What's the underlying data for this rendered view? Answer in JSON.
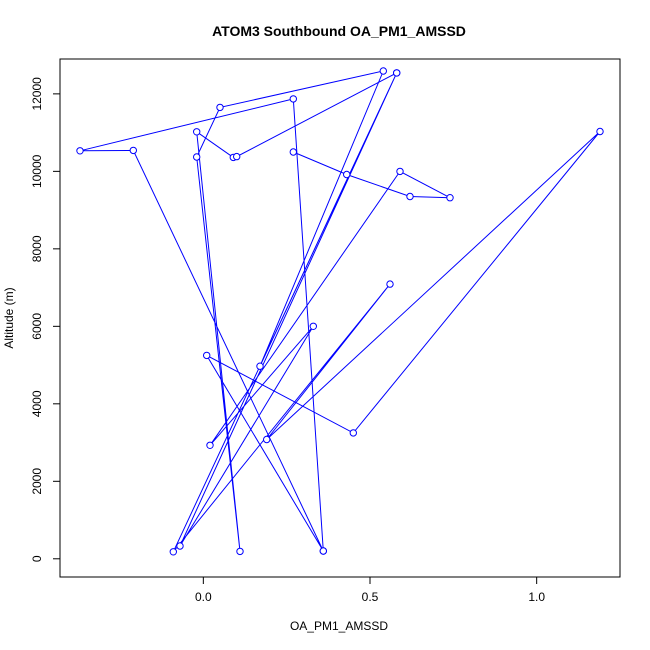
{
  "chart_data": {
    "type": "line",
    "title": "ATOM3 Southbound OA_PM1_AMSSD",
    "xlabel": "OA_PM1_AMSSD",
    "ylabel": "Altitude (m)",
    "xlim": [
      -0.43,
      1.25
    ],
    "ylim": [
      -470,
      12900
    ],
    "xticks": [
      0.0,
      0.5,
      1.0
    ],
    "xtick_labels": [
      "0.0",
      "0.5",
      "1.0"
    ],
    "yticks": [
      0,
      2000,
      4000,
      6000,
      8000,
      10000,
      12000
    ],
    "ytick_labels": [
      "0",
      "2000",
      "4000",
      "6000",
      "8000",
      "10000",
      "12000"
    ],
    "grid": false,
    "legend": "none",
    "color": "#0000ff",
    "series": [
      {
        "points": [
          [
            0.27,
            10500
          ],
          [
            0.43,
            9920
          ],
          [
            0.62,
            9350
          ],
          [
            0.74,
            9320
          ],
          [
            0.59,
            10000
          ],
          [
            0.02,
            2930
          ],
          [
            0.33,
            6000
          ],
          [
            -0.07,
            330
          ],
          [
            0.58,
            12540
          ],
          [
            0.17,
            4970
          ],
          [
            0.54,
            12590
          ],
          [
            0.05,
            11650
          ],
          [
            -0.02,
            10370
          ],
          [
            0.11,
            190
          ],
          [
            -0.02,
            11020
          ],
          [
            0.09,
            10360
          ],
          [
            0.1,
            10380
          ],
          [
            0.58,
            12540
          ],
          [
            -0.09,
            180
          ],
          [
            0.56,
            7090
          ],
          [
            0.19,
            3080
          ],
          [
            1.19,
            11030
          ],
          [
            0.45,
            3250
          ],
          [
            0.01,
            5250
          ],
          [
            0.36,
            200
          ],
          [
            -0.21,
            10540
          ],
          [
            -0.37,
            10530
          ],
          [
            0.27,
            11870
          ],
          [
            0.36,
            200
          ]
        ]
      }
    ]
  }
}
